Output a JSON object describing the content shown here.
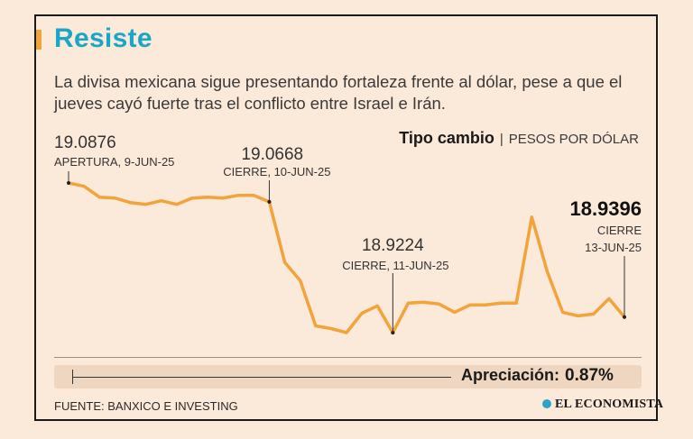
{
  "title": "Resiste",
  "subtitle": "La divisa mexicana sigue presentando fortaleza frente al dólar, pese a que el jueves cayó fuerte tras el conflicto entre Israel e Irán.",
  "chart_header": {
    "label": "Tipo cambio",
    "unit": "PESOS POR DÓLAR"
  },
  "chart_data": {
    "type": "line",
    "title": "Tipo cambio",
    "ylabel": "PESOS POR DÓLAR",
    "color": "#f2a33a",
    "values": [
      19.0876,
      19.084,
      19.072,
      19.071,
      19.066,
      19.064,
      19.068,
      19.064,
      19.071,
      19.072,
      19.071,
      19.074,
      19.074,
      19.0668,
      19.0,
      18.98,
      18.93,
      18.927,
      18.9225,
      18.944,
      18.952,
      18.9224,
      18.955,
      18.956,
      18.954,
      18.945,
      18.953,
      18.953,
      18.955,
      18.955,
      19.05,
      18.99,
      18.945,
      18.941,
      18.943,
      18.96,
      18.9396
    ],
    "annotations": [
      {
        "index": 0,
        "value": "19.0876",
        "label": "APERTURA, 9-JUN-25"
      },
      {
        "index": 13,
        "value": "19.0668",
        "label": "CIERRE, 10-JUN-25"
      },
      {
        "index": 21,
        "value": "18.9224",
        "label": "CIERRE, 11-JUN-25"
      },
      {
        "index": 36,
        "value": "18.9396",
        "label_line1": "CIERRE",
        "label_line2": "13-JUN-25"
      }
    ]
  },
  "appreciation": {
    "label": "Apreciación:",
    "value": "0.87%"
  },
  "source": "FUENTE: BANXICO E INVESTING",
  "brand": "EL ECONOMISTA"
}
